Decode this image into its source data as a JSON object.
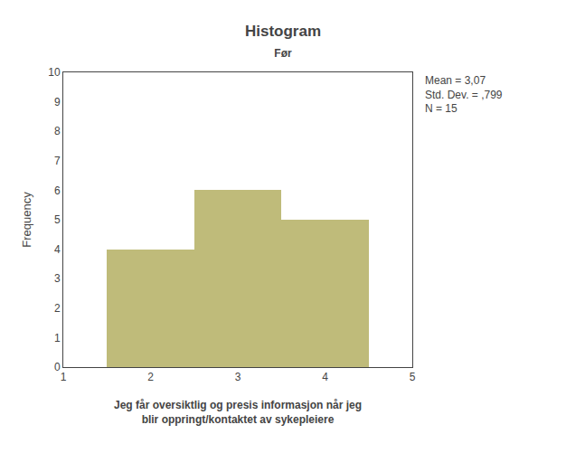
{
  "chart_data": {
    "type": "histogram",
    "title": "Histogram",
    "subtitle": "Før",
    "xlabel": "Jeg får oversiktlig og presis informasjon når jeg\nblir oppringt/kontaktet av sykepleiere",
    "ylabel": "Frequency",
    "bins": [
      1.5,
      2.5,
      3.5,
      4.5
    ],
    "values": [
      4,
      6,
      5
    ],
    "color": "#bfbb7a",
    "xlim": [
      1,
      5
    ],
    "xticks": [
      1,
      2,
      3,
      4,
      5
    ],
    "ylim": [
      0,
      10
    ],
    "yticks": [
      0,
      1,
      2,
      3,
      4,
      5,
      6,
      7,
      8,
      9,
      10
    ],
    "grid": false,
    "annotations": [
      "Mean = 3,07",
      "Std. Dev. = ,799",
      "N = 15"
    ]
  }
}
